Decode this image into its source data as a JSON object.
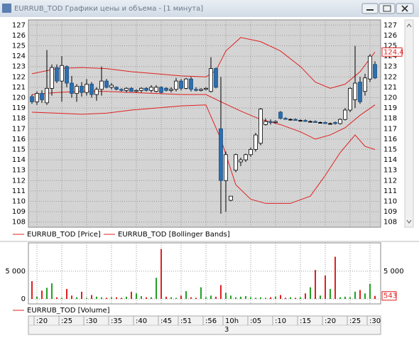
{
  "window": {
    "title": "EURRUB_TOD Графики цены и объема - [1 минута]"
  },
  "chart_data": [
    {
      "type": "candlestick",
      "name": "EURRUB_TOD [Price]",
      "up_color": "#ffffff",
      "down_color": "#2a6fb0",
      "open": [
        120.1,
        119.6,
        120.4,
        119.5,
        120.9,
        122.9,
        121.6,
        123.0,
        121.4,
        120.4,
        121.1,
        120.5,
        121.3,
        120.3,
        120.8,
        121.6,
        121.0,
        121.0,
        120.8,
        120.7,
        120.9,
        120.6,
        120.7,
        120.9,
        120.7,
        120.6,
        121.0,
        120.9,
        120.7,
        120.8,
        121.6,
        120.9,
        121.8,
        120.8,
        120.7,
        120.8,
        120.6,
        122.8,
        117.0,
        112.0,
        110.1,
        113.0,
        113.8,
        114.0,
        114.5,
        115.0,
        115.6,
        117.4,
        117.7,
        117.6,
        118.6,
        118.0,
        117.9,
        117.9,
        117.8,
        117.8,
        117.7,
        117.7,
        117.6,
        117.6,
        117.5,
        117.6,
        117.5,
        117.9,
        118.8,
        119.8,
        121.5,
        120.6,
        121.8,
        123.2
      ],
      "high": [
        120.3,
        120.6,
        120.7,
        124.6,
        123.2,
        123.2,
        124.0,
        123.1,
        122.1,
        121.3,
        121.5,
        121.8,
        121.5,
        121.0,
        123.0,
        121.8,
        121.4,
        121.1,
        120.9,
        121.0,
        121.0,
        120.8,
        121.0,
        121.0,
        121.2,
        121.2,
        121.1,
        121.0,
        121.0,
        121.9,
        121.8,
        121.9,
        122.0,
        121.0,
        120.9,
        121.0,
        123.9,
        122.9,
        122.0,
        114.8,
        110.5,
        114.6,
        114.2,
        114.6,
        115.2,
        116.6,
        119.0,
        118.0,
        117.9,
        117.8,
        118.7,
        118.1,
        118.0,
        118.0,
        117.9,
        117.9,
        117.8,
        117.8,
        117.7,
        117.7,
        117.6,
        117.7,
        118.0,
        119.0,
        121.0,
        125.0,
        122.0,
        122.3,
        124.2,
        123.5
      ],
      "low": [
        119.4,
        119.3,
        119.5,
        119.3,
        120.2,
        121.4,
        119.6,
        121.0,
        120.0,
        119.6,
        120.1,
        120.2,
        120.0,
        119.7,
        120.2,
        120.9,
        120.8,
        120.7,
        120.6,
        120.5,
        120.6,
        120.5,
        120.5,
        120.6,
        120.5,
        120.5,
        120.4,
        120.6,
        120.5,
        120.6,
        120.7,
        120.8,
        120.6,
        120.6,
        120.6,
        120.7,
        120.5,
        120.9,
        108.8,
        109.0,
        110.0,
        112.8,
        113.4,
        113.8,
        114.3,
        114.8,
        115.4,
        117.3,
        117.4,
        117.5,
        117.9,
        117.9,
        117.8,
        117.8,
        117.7,
        117.7,
        117.6,
        117.6,
        117.5,
        117.5,
        117.4,
        117.4,
        117.4,
        117.8,
        118.6,
        119.0,
        119.4,
        120.2,
        121.5,
        121.8
      ],
      "close": [
        119.6,
        120.4,
        119.8,
        120.9,
        122.9,
        121.6,
        123.1,
        121.4,
        120.4,
        121.1,
        120.5,
        121.3,
        120.3,
        120.8,
        121.6,
        121.0,
        121.2,
        120.8,
        120.7,
        120.9,
        120.6,
        120.7,
        120.9,
        120.7,
        121.0,
        121.0,
        120.5,
        120.7,
        120.8,
        121.6,
        120.9,
        121.8,
        120.8,
        120.7,
        120.8,
        120.9,
        122.8,
        121.0,
        112.0,
        114.5,
        110.5,
        114.5,
        114.0,
        114.5,
        115.0,
        116.4,
        118.9,
        117.7,
        117.6,
        117.7,
        118.0,
        117.9,
        117.9,
        117.8,
        117.8,
        117.7,
        117.7,
        117.6,
        117.6,
        117.5,
        117.5,
        117.5,
        117.9,
        118.8,
        120.9,
        121.4,
        119.6,
        121.9,
        124.0,
        121.9
      ],
      "bands": {
        "name": "EURRUB_TOD [Bollinger Bands]",
        "color": "#e02020",
        "lines": [
          {
            "x": [
              0,
              5,
              10,
              15,
              20,
              25,
              30,
              35,
              37,
              39,
              42,
              46,
              50,
              54,
              57,
              60,
              63,
              66,
              69
            ],
            "values": [
              122.3,
              122.8,
              122.9,
              122.8,
              122.5,
              122.3,
              122.1,
              122.0,
              122.6,
              124.5,
              125.8,
              125.4,
              124.5,
              123.0,
              121.5,
              120.9,
              121.3,
              122.5,
              124.4
            ]
          },
          {
            "x": [
              0,
              5,
              10,
              15,
              20,
              25,
              30,
              35,
              38,
              42,
              46,
              50,
              54,
              57,
              60,
              63,
              66,
              69
            ],
            "values": [
              120.3,
              120.5,
              120.6,
              120.6,
              120.5,
              120.4,
              120.3,
              120.3,
              119.6,
              118.7,
              117.9,
              117.4,
              116.7,
              116.0,
              116.4,
              117.1,
              118.3,
              119.3
            ]
          },
          {
            "x": [
              0,
              5,
              10,
              15,
              20,
              25,
              30,
              35,
              38,
              41,
              44,
              47,
              52,
              56,
              59,
              62,
              65,
              67,
              69
            ],
            "values": [
              118.6,
              118.5,
              118.4,
              118.5,
              118.8,
              119.0,
              119.2,
              119.3,
              116.0,
              111.6,
              110.2,
              109.8,
              109.8,
              110.5,
              112.5,
              114.7,
              116.4,
              115.3,
              115.0
            ]
          }
        ]
      },
      "ylim": [
        107.5,
        127.5
      ],
      "yticks": [
        108,
        109,
        110,
        111,
        112,
        113,
        114,
        115,
        116,
        117,
        118,
        119,
        120,
        121,
        122,
        123,
        124,
        125,
        126,
        127
      ],
      "grid": true
    },
    {
      "type": "bar",
      "name": "EURRUB_TOD [Volume]",
      "up_color": "#22a022",
      "down_color": "#e02020",
      "values": [
        3200,
        400,
        1500,
        2000,
        2800,
        300,
        200,
        1800,
        600,
        300,
        1300,
        200,
        700,
        400,
        300,
        200,
        300,
        300,
        200,
        400,
        1300,
        1000,
        500,
        300,
        300,
        3800,
        9000,
        400,
        300,
        200,
        600,
        1400,
        300,
        200,
        2100,
        300,
        600,
        400,
        2500,
        1100,
        600,
        300,
        400,
        500,
        300,
        200,
        300,
        200,
        300,
        400,
        700,
        200,
        300,
        200,
        300,
        1000,
        2100,
        5200,
        600,
        4200,
        1800,
        7600,
        300,
        400,
        300,
        1300,
        1600,
        1000,
        2700,
        543
      ],
      "categories": [
        null,
        ":20",
        null,
        null,
        null,
        null,
        ":25",
        null,
        null,
        null,
        null,
        ":30",
        null,
        null,
        null,
        null,
        ":35",
        null,
        null,
        null,
        null,
        ":40",
        null,
        null,
        null,
        null,
        ":45",
        null,
        null,
        null,
        ":51",
        null,
        null,
        null,
        null,
        ":56",
        null,
        null,
        null,
        "10h",
        null,
        null,
        null,
        null,
        ":05",
        null,
        null,
        null,
        null,
        ":10",
        null,
        null,
        null,
        null,
        ":15",
        null,
        null,
        null,
        null,
        ":20",
        null,
        null,
        null,
        null,
        ":25",
        null,
        null,
        null,
        ":30",
        null
      ],
      "x_sublabel": "3",
      "ylim": [
        -900,
        10100
      ],
      "yticks": [
        0,
        {
          "value": 5000,
          "label": "5 000"
        }
      ],
      "grid": true
    }
  ]
}
